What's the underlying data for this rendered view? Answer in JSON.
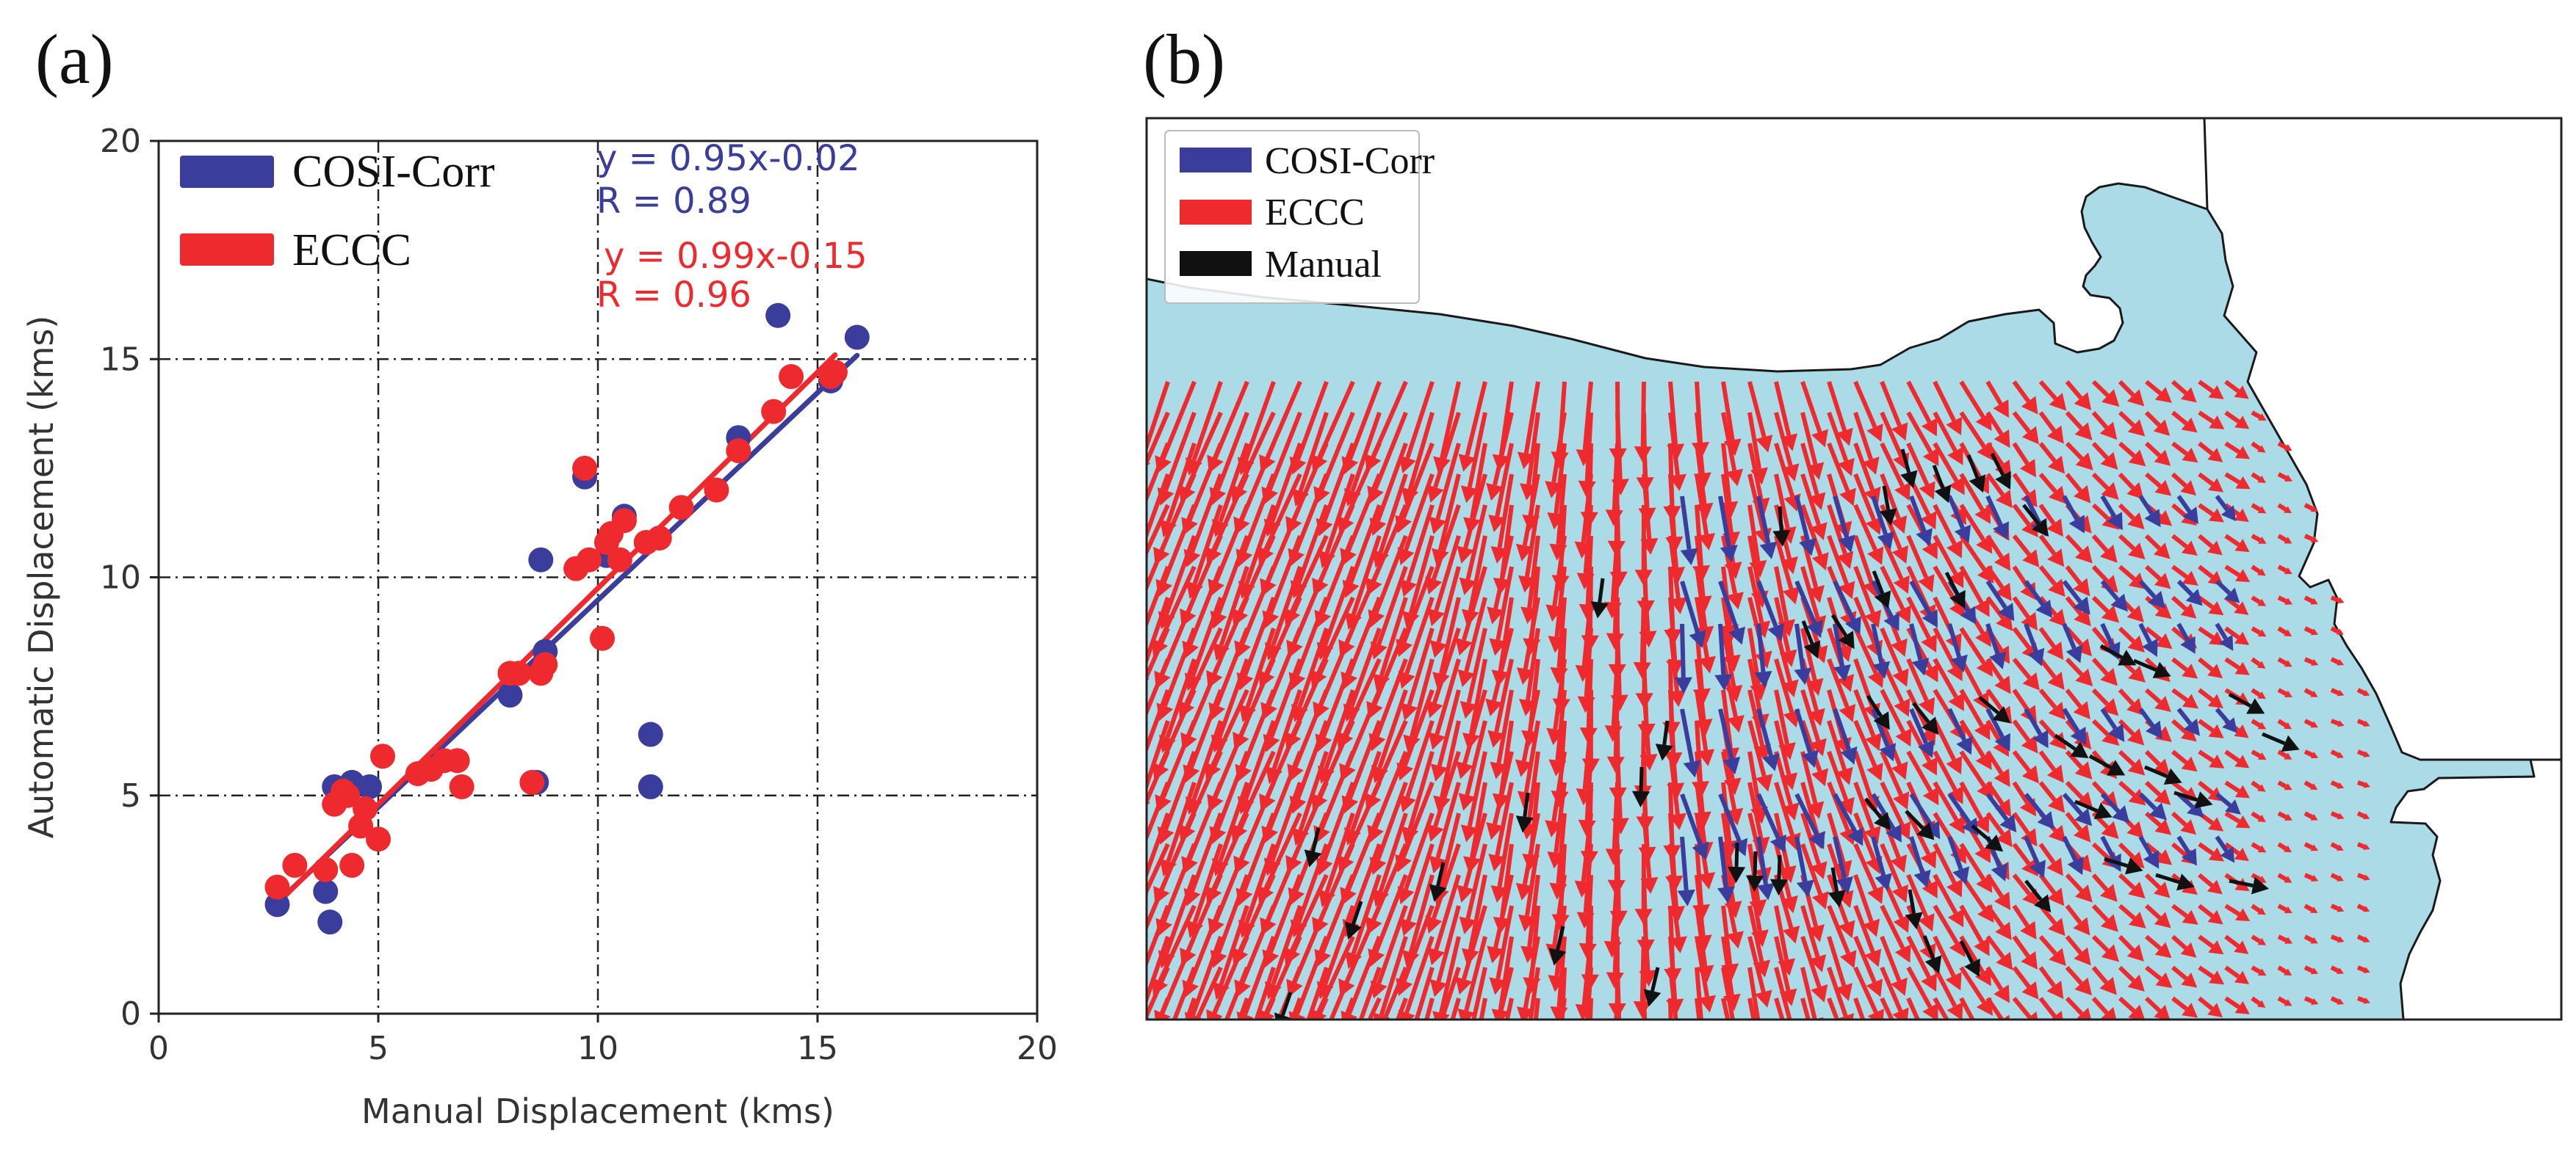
{
  "colors": {
    "cosi": "#3a3d9c",
    "eccc": "#ee2a2e",
    "manual": "#111111",
    "water": "#aadbe7",
    "land": "#ffffff",
    "grid": "#222222"
  },
  "panel_a": {
    "label": "(a)",
    "legend": [
      {
        "name": "COSI-Corr",
        "color": "#3a3d9c"
      },
      {
        "name": "ECCC",
        "color": "#ee2a2e"
      }
    ],
    "annotations": {
      "cosi_eq": "y = 0.95x-0.02",
      "cosi_r": "R = 0.89",
      "eccc_eq": "y = 0.99x-0.15",
      "eccc_r": "R = 0.96"
    }
  },
  "panel_b": {
    "label": "(b)",
    "legend": [
      {
        "name": "COSI-Corr",
        "color": "#3a3d9c"
      },
      {
        "name": "ECCC",
        "color": "#ee2a2e"
      },
      {
        "name": "Manual",
        "color": "#111111"
      }
    ]
  },
  "chart_data": [
    {
      "type": "scatter",
      "title": "",
      "xlabel": "Manual Displacement (kms)",
      "ylabel": "Automatic Displacement (kms)",
      "xlim": [
        0,
        20
      ],
      "ylim": [
        0,
        20
      ],
      "xticks": [
        "0",
        "5",
        "10",
        "15",
        "20"
      ],
      "yticks": [
        "0",
        "5",
        "10",
        "15",
        "20"
      ],
      "grid": true,
      "legend_position": "top-left",
      "series": [
        {
          "name": "COSI-Corr",
          "fit": {
            "slope": 0.95,
            "intercept": -0.02,
            "R": 0.89
          },
          "points": [
            [
              2.7,
              2.5
            ],
            [
              3.8,
              2.8
            ],
            [
              3.9,
              2.1
            ],
            [
              4.0,
              5.2
            ],
            [
              4.4,
              5.3
            ],
            [
              4.8,
              5.2
            ],
            [
              8.0,
              7.3
            ],
            [
              8.6,
              5.3
            ],
            [
              8.7,
              10.4
            ],
            [
              8.8,
              8.3
            ],
            [
              9.7,
              12.3
            ],
            [
              10.2,
              10.5
            ],
            [
              10.6,
              11.4
            ],
            [
              11.2,
              6.4
            ],
            [
              11.2,
              5.2
            ],
            [
              13.2,
              13.2
            ],
            [
              14.1,
              16.0
            ],
            [
              15.3,
              14.5
            ],
            [
              15.9,
              15.5
            ]
          ]
        },
        {
          "name": "ECCC",
          "fit": {
            "slope": 0.99,
            "intercept": -0.15,
            "R": 0.96
          },
          "points": [
            [
              2.7,
              2.9
            ],
            [
              3.1,
              3.4
            ],
            [
              3.8,
              3.3
            ],
            [
              4.0,
              4.8
            ],
            [
              4.2,
              5.1
            ],
            [
              4.3,
              5.0
            ],
            [
              4.4,
              3.4
            ],
            [
              4.6,
              4.3
            ],
            [
              4.7,
              4.7
            ],
            [
              5.0,
              4.0
            ],
            [
              5.1,
              5.9
            ],
            [
              5.9,
              5.5
            ],
            [
              6.2,
              5.6
            ],
            [
              6.5,
              5.8
            ],
            [
              6.8,
              5.8
            ],
            [
              6.9,
              5.2
            ],
            [
              8.0,
              7.8
            ],
            [
              8.2,
              7.8
            ],
            [
              8.5,
              5.3
            ],
            [
              8.7,
              7.8
            ],
            [
              8.8,
              8.0
            ],
            [
              9.5,
              10.2
            ],
            [
              9.7,
              12.5
            ],
            [
              9.8,
              10.4
            ],
            [
              10.1,
              8.6
            ],
            [
              10.2,
              10.8
            ],
            [
              10.3,
              11.0
            ],
            [
              10.5,
              10.4
            ],
            [
              10.6,
              11.3
            ],
            [
              11.1,
              10.8
            ],
            [
              11.4,
              10.9
            ],
            [
              11.9,
              11.6
            ],
            [
              12.7,
              12.0
            ],
            [
              13.2,
              12.9
            ],
            [
              14.0,
              13.8
            ],
            [
              14.4,
              14.6
            ],
            [
              15.3,
              14.6
            ],
            [
              15.4,
              14.7
            ]
          ]
        }
      ]
    },
    {
      "type": "quiver",
      "title": "",
      "legend_position": "top-left",
      "series": [
        {
          "name": "COSI-Corr",
          "note": "blue displacement vectors concentrated in the central bay"
        },
        {
          "name": "ECCC",
          "note": "red displacement vector field, mostly south/south-southwest in the west turning east-southeast in the east"
        },
        {
          "name": "Manual",
          "note": "sparse black manually tracked vectors"
        }
      ]
    }
  ]
}
